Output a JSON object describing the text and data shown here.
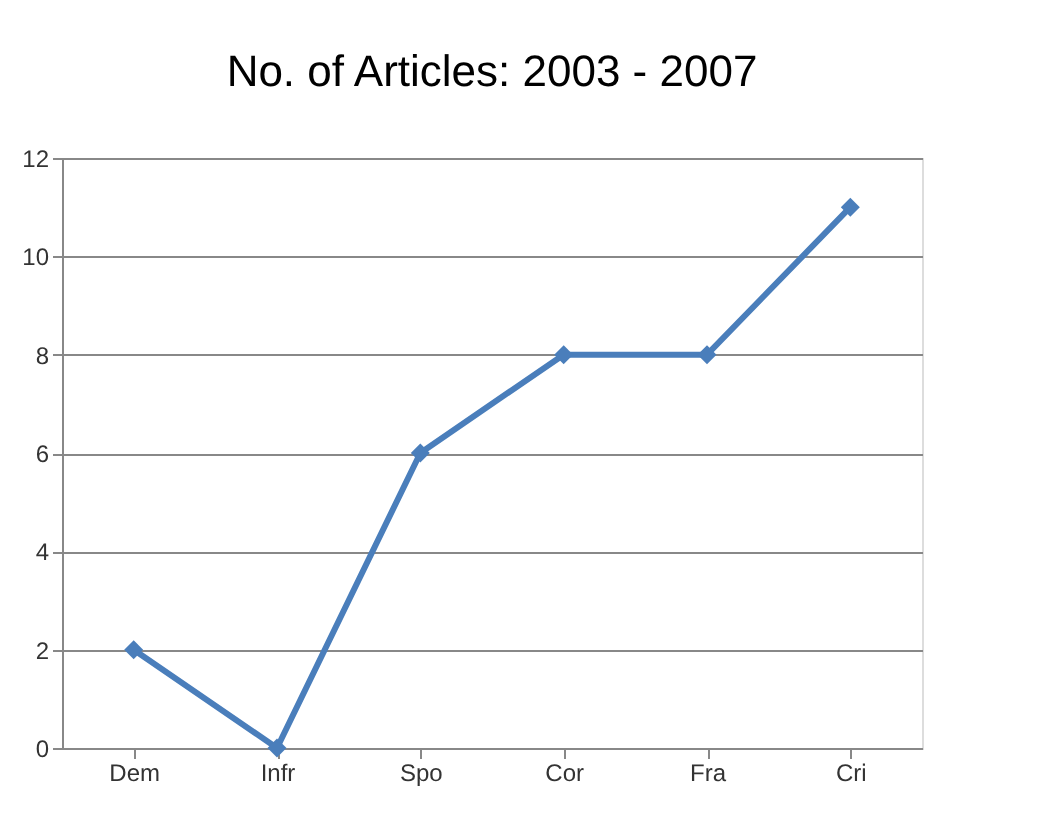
{
  "chart_data": {
    "type": "line",
    "title": "No. of Articles: 2003 - 2007",
    "categories": [
      "Dem",
      "Infr",
      "Spo",
      "Cor",
      "Fra",
      "Cri"
    ],
    "series": [
      {
        "color": "#4a7ebb",
        "values": [
          2,
          0,
          6,
          8,
          8,
          11
        ]
      }
    ],
    "ylim": [
      0,
      12
    ],
    "yticks": [
      0,
      2,
      4,
      6,
      8,
      10,
      12
    ],
    "grid": "y",
    "marker": "diamond",
    "line_style": "solid"
  }
}
